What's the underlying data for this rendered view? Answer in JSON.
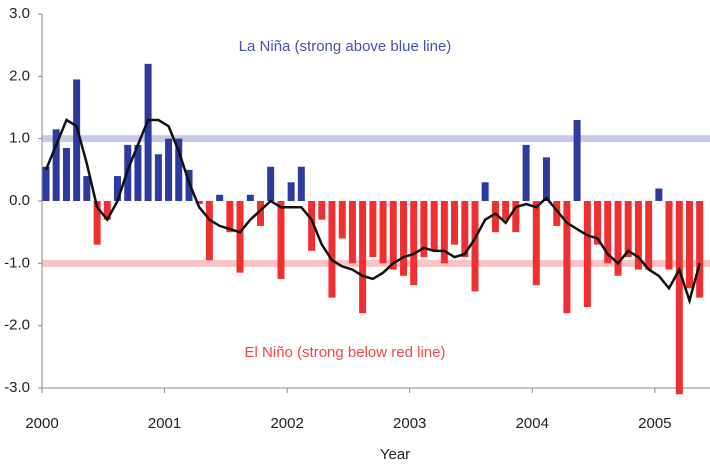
{
  "chart_data": {
    "type": "bar",
    "annotations": [
      {
        "text": "La Niña (strong above blue line)",
        "color": "#4a4fb0"
      },
      {
        "text": "El Niño (strong below red line)",
        "color": "#f04848"
      }
    ],
    "x_label": "Year",
    "x": [
      2000.0,
      2000.083,
      2000.167,
      2000.25,
      2000.333,
      2000.417,
      2000.5,
      2000.583,
      2000.667,
      2000.75,
      2000.833,
      2000.917,
      2001.0,
      2001.083,
      2001.167,
      2001.25,
      2001.333,
      2001.417,
      2001.5,
      2001.583,
      2001.667,
      2001.75,
      2001.833,
      2001.917,
      2002.0,
      2002.083,
      2002.167,
      2002.25,
      2002.333,
      2002.417,
      2002.5,
      2002.583,
      2002.667,
      2002.75,
      2002.833,
      2002.917,
      2003.0,
      2003.083,
      2003.167,
      2003.25,
      2003.333,
      2003.417,
      2003.5,
      2003.583,
      2003.667,
      2003.75,
      2003.833,
      2003.917,
      2004.0,
      2004.083,
      2004.167,
      2004.25,
      2004.333,
      2004.417,
      2004.5,
      2004.583,
      2004.667,
      2004.75,
      2004.833,
      2004.917,
      2005.0,
      2005.083,
      2005.167,
      2005.25,
      2005.333
    ],
    "values": [
      0.55,
      1.15,
      0.85,
      1.95,
      0.4,
      -0.7,
      -0.3,
      0.4,
      0.9,
      0.9,
      2.2,
      0.75,
      1.0,
      1.0,
      0.5,
      -0.05,
      -0.95,
      0.1,
      -0.5,
      -1.15,
      0.1,
      -0.4,
      0.55,
      -1.25,
      0.3,
      0.55,
      -0.8,
      -0.3,
      -1.55,
      -0.6,
      -1.0,
      -1.8,
      -0.9,
      -1.0,
      -1.1,
      -1.2,
      -1.35,
      -0.9,
      -0.8,
      -1.0,
      -0.7,
      -0.9,
      -1.45,
      0.3,
      -0.5,
      -0.3,
      -0.5,
      0.9,
      -1.35,
      0.7,
      -0.4,
      -1.8,
      1.3,
      -1.7,
      -0.7,
      -1.0,
      -1.2,
      -0.9,
      -1.1,
      -1.1,
      0.2,
      -1.1,
      -3.1,
      -1.4,
      -1.55
    ],
    "line_values": [
      0.5,
      0.9,
      1.3,
      1.2,
      0.6,
      -0.1,
      -0.3,
      0.0,
      0.5,
      0.9,
      1.3,
      1.3,
      1.2,
      0.8,
      0.3,
      -0.1,
      -0.3,
      -0.4,
      -0.45,
      -0.5,
      -0.3,
      -0.15,
      0.0,
      -0.1,
      -0.1,
      -0.1,
      -0.3,
      -0.7,
      -0.95,
      -1.05,
      -1.1,
      -1.2,
      -1.25,
      -1.15,
      -1.0,
      -0.9,
      -0.85,
      -0.75,
      -0.8,
      -0.8,
      -0.9,
      -0.85,
      -0.6,
      -0.3,
      -0.2,
      -0.35,
      -0.1,
      -0.05,
      -0.1,
      0.05,
      -0.15,
      -0.35,
      -0.45,
      -0.55,
      -0.6,
      -0.85,
      -1.0,
      -0.8,
      -0.9,
      -1.1,
      -1.2,
      -1.4,
      -1.1,
      -1.6,
      -1.0
    ],
    "positive_color": "#2e3a9e",
    "negative_color": "#f03030",
    "line_color": "#111111",
    "hlines": [
      {
        "value": 1,
        "color": "#c7cbe8"
      },
      {
        "value": -1,
        "color": "#f8c4c4"
      }
    ],
    "xlim": [
      2000,
      2005.45
    ],
    "xticks": [
      2000,
      2001,
      2002,
      2003,
      2004,
      2005
    ],
    "ylim": [
      -3,
      3
    ],
    "yticks": [
      {
        "value": 3,
        "label": "3.0"
      },
      {
        "value": 2,
        "label": "2.0"
      },
      {
        "value": 1,
        "label": "1.0"
      },
      {
        "value": 0,
        "label": "0.0"
      },
      {
        "value": -1,
        "label": "-1.0"
      },
      {
        "value": -2,
        "label": "-2.0"
      },
      {
        "value": -3,
        "label": "-3.0"
      }
    ]
  }
}
